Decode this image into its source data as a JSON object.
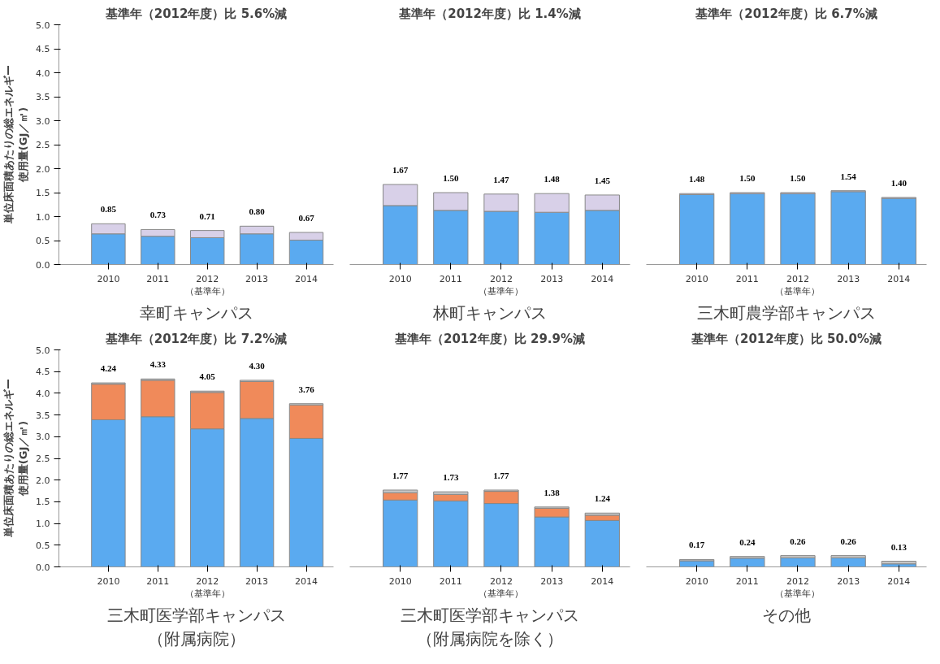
{
  "chart_data": [
    {
      "type": "bar",
      "stacked": true,
      "title": "基準年（2012年度）比 5.6%減",
      "xlabel": "幸町キャンパス",
      "ylabel": "単位床面積あたりの総エネルギー使用量(GJ／㎡)",
      "categories": [
        "2010",
        "2011",
        "2012\n（基準年）",
        "2013",
        "2014"
      ],
      "ylim": [
        0,
        5
      ],
      "yticks": [
        {
          "value": 0,
          "label": "0.0"
        },
        {
          "value": 0.5,
          "label": "0.5"
        },
        {
          "value": 1,
          "label": "1.0"
        },
        {
          "value": 1.5,
          "label": "1.5"
        },
        {
          "value": 2,
          "label": "2.0"
        },
        {
          "value": 2.5,
          "label": "2.5"
        },
        {
          "value": 3,
          "label": "3.0"
        },
        {
          "value": 3.5,
          "label": "3.5"
        },
        {
          "value": 4,
          "label": "4.0"
        },
        {
          "value": 4.5,
          "label": "4.5"
        },
        {
          "value": 5,
          "label": "5.0"
        }
      ],
      "grid": false,
      "series": [
        {
          "color": "#5aaaf0",
          "values": [
            0.64,
            0.59,
            0.56,
            0.64,
            0.51
          ]
        },
        {
          "color": "#d8d0e8",
          "values": [
            0.21,
            0.14,
            0.15,
            0.16,
            0.16
          ]
        }
      ],
      "totals": [
        "0.85",
        "0.73",
        "0.71",
        "0.80",
        "0.67"
      ]
    },
    {
      "type": "bar",
      "stacked": true,
      "title": "基準年（2012年度）比 1.4%減",
      "xlabel": "林町キャンパス",
      "categories": [
        "2010",
        "2011",
        "2012\n（基準年）",
        "2013",
        "2014"
      ],
      "ylim": [
        0,
        5
      ],
      "tick_labels": "x",
      "grid": false,
      "series": [
        {
          "color": "#5aaaf0",
          "values": [
            1.23,
            1.13,
            1.11,
            1.09,
            1.13
          ]
        },
        {
          "color": "#d8d0e8",
          "values": [
            0.44,
            0.37,
            0.36,
            0.39,
            0.32
          ]
        }
      ],
      "totals": [
        "1.67",
        "1.50",
        "1.47",
        "1.48",
        "1.45"
      ]
    },
    {
      "type": "bar",
      "stacked": true,
      "title": "基準年（2012年度）比 6.7%減",
      "xlabel": "三木町農学部キャンパス",
      "categories": [
        "2010",
        "2011",
        "2012\n（基準年）",
        "2013",
        "2014"
      ],
      "ylim": [
        0,
        5
      ],
      "tick_labels": "x",
      "grid": false,
      "series": [
        {
          "color": "#5aaaf0",
          "values": [
            1.46,
            1.48,
            1.48,
            1.52,
            1.38
          ]
        },
        {
          "color": "#d8d0e8",
          "values": [
            0.02,
            0.02,
            0.02,
            0.02,
            0.02
          ]
        }
      ],
      "totals": [
        "1.48",
        "1.50",
        "1.50",
        "1.54",
        "1.40"
      ]
    },
    {
      "type": "bar",
      "stacked": true,
      "title": "基準年（2012年度）比 7.2%減",
      "xlabel": "三木町医学部キャンパス（附属病院）",
      "ylabel": "単位床面積あたりの総エネルギー使用量(GJ／㎡)",
      "categories": [
        "2010",
        "2011",
        "2012\n（基準年）",
        "2013",
        "2014"
      ],
      "ylim": [
        0,
        5
      ],
      "yticks": [
        {
          "value": 0,
          "label": "0.0"
        },
        {
          "value": 0.5,
          "label": "0.5"
        },
        {
          "value": 1,
          "label": "1.0"
        },
        {
          "value": 1.5,
          "label": "1.5"
        },
        {
          "value": 2,
          "label": "2.0"
        },
        {
          "value": 2.5,
          "label": "2.5"
        },
        {
          "value": 3,
          "label": "3.0"
        },
        {
          "value": 3.5,
          "label": "3.5"
        },
        {
          "value": 4,
          "label": "4.0"
        },
        {
          "value": 4.5,
          "label": "4.5"
        },
        {
          "value": 5,
          "label": "5.0"
        }
      ],
      "grid": false,
      "series": [
        {
          "color": "#5aaaf0",
          "values": [
            3.39,
            3.46,
            3.18,
            3.42,
            2.96
          ]
        },
        {
          "color": "#f08a5a",
          "values": [
            0.82,
            0.84,
            0.84,
            0.85,
            0.77
          ]
        },
        {
          "color": "#c8c8c8",
          "values": [
            0.03,
            0.03,
            0.03,
            0.03,
            0.03
          ]
        }
      ],
      "totals": [
        "4.24",
        "4.33",
        "4.05",
        "4.30",
        "3.76"
      ]
    },
    {
      "type": "bar",
      "stacked": true,
      "title": "基準年（2012年度）比 29.9%減",
      "xlabel": "三木町医学部キャンパス（附属病院を除く）",
      "categories": [
        "2010",
        "2011",
        "2012\n（基準年）",
        "2013",
        "2014"
      ],
      "ylim": [
        0,
        5
      ],
      "tick_labels": "x",
      "grid": false,
      "series": [
        {
          "color": "#5aaaf0",
          "values": [
            1.54,
            1.52,
            1.46,
            1.15,
            1.07
          ]
        },
        {
          "color": "#f08a5a",
          "values": [
            0.17,
            0.15,
            0.28,
            0.2,
            0.12
          ]
        },
        {
          "color": "#c8c8c8",
          "values": [
            0.06,
            0.06,
            0.03,
            0.03,
            0.05
          ]
        }
      ],
      "totals": [
        "1.77",
        "1.73",
        "1.77",
        "1.38",
        "1.24"
      ]
    },
    {
      "type": "bar",
      "stacked": true,
      "title": "基準年（2012年度）比 50.0%減",
      "xlabel": "その他",
      "categories": [
        "2010",
        "2011",
        "2012\n（基準年）",
        "2013",
        "2014"
      ],
      "ylim": [
        0,
        5
      ],
      "tick_labels": "x",
      "grid": false,
      "series": [
        {
          "color": "#5aaaf0",
          "values": [
            0.14,
            0.2,
            0.21,
            0.21,
            0.07
          ]
        },
        {
          "color": "#c8c8c8",
          "values": [
            0.03,
            0.04,
            0.05,
            0.05,
            0.06
          ]
        }
      ],
      "totals": [
        "0.17",
        "0.24",
        "0.26",
        "0.26",
        "0.13"
      ]
    }
  ]
}
